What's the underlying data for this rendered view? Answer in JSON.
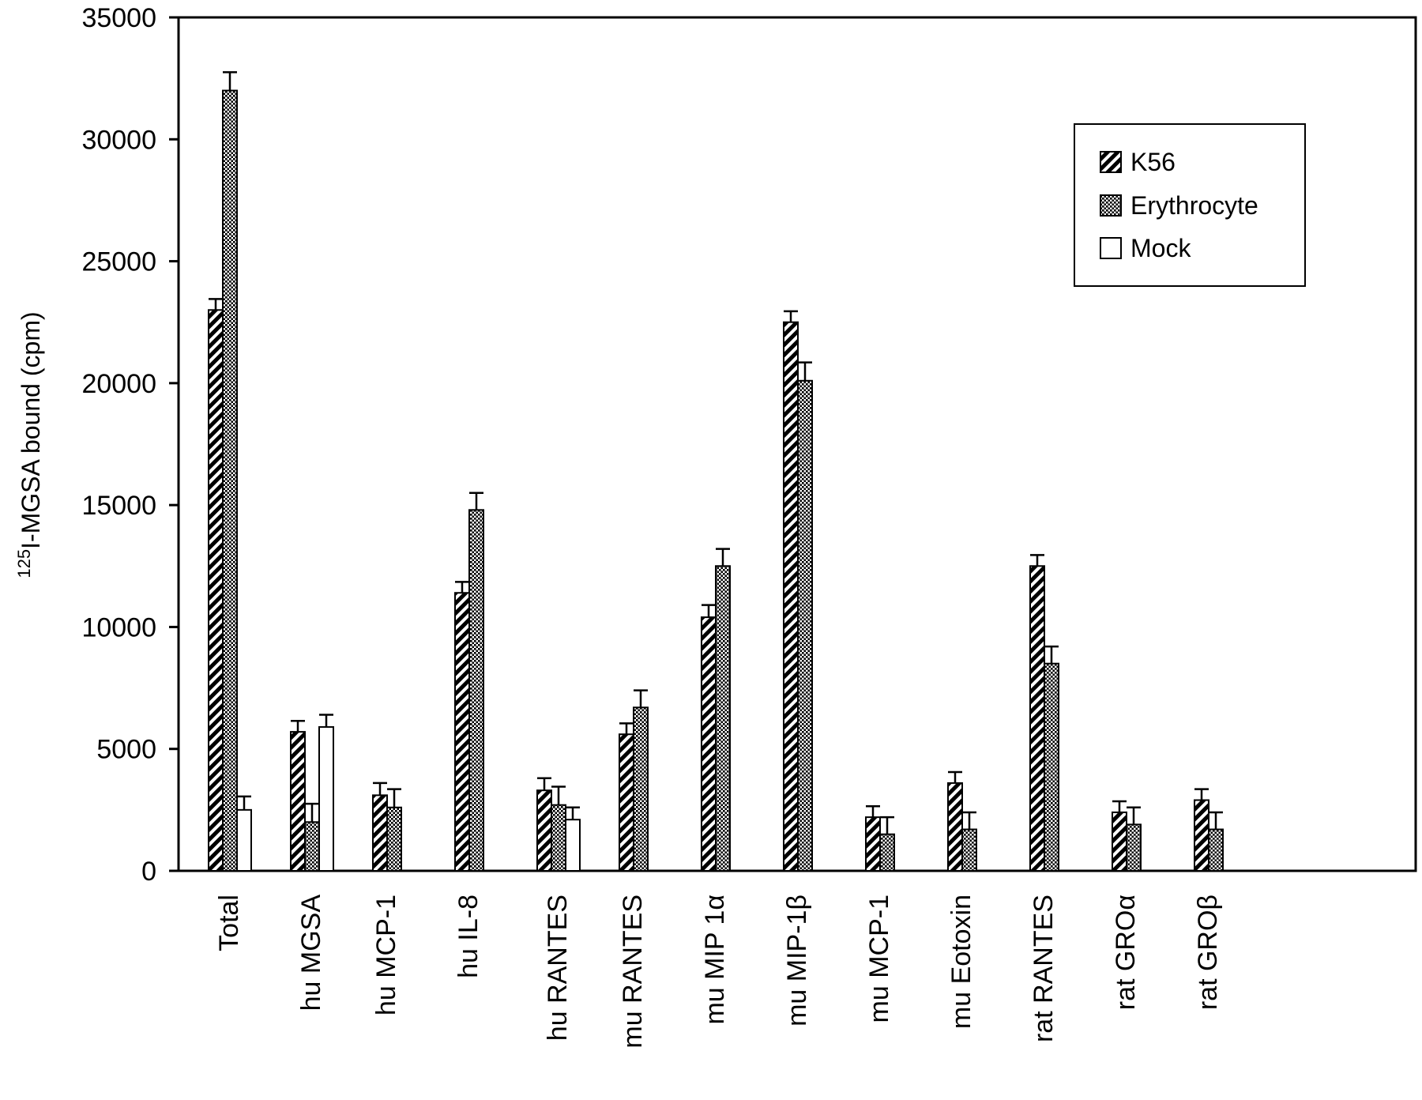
{
  "chart_data": {
    "type": "bar",
    "title": "",
    "xlabel": "",
    "ylabel": {
      "sup": "125",
      "text": "I-MGSA bound (cpm)"
    },
    "ylim": [
      0,
      35000
    ],
    "yticks": [
      0,
      5000,
      10000,
      15000,
      20000,
      25000,
      30000,
      35000
    ],
    "ytick_labels": [
      "0",
      "5000",
      "10000",
      "15000",
      "20000",
      "25000",
      "30000",
      "35000"
    ],
    "grid": false,
    "legend_position": "top-right",
    "categories": [
      "Total",
      "hu MGSA",
      "hu MCP-1",
      "hu IL-8",
      "hu RANTES",
      "mu RANTES",
      "mu MIP 1α",
      "mu MIP-1β",
      "mu MCP-1",
      "mu Eotoxin",
      "rat RANTES",
      "rat GROα",
      "rat GROβ"
    ],
    "series": [
      {
        "name": "K56",
        "pattern": "diagonal",
        "values": [
          23000,
          5700,
          3100,
          11400,
          3300,
          5600,
          10400,
          22500,
          2200,
          3600,
          12500,
          2400,
          2900
        ],
        "errors": [
          450,
          450,
          500,
          450,
          500,
          450,
          500,
          450,
          450,
          450,
          450,
          450,
          450
        ]
      },
      {
        "name": "Erythrocyte",
        "pattern": "dots",
        "values": [
          32000,
          2000,
          2600,
          14800,
          2700,
          6700,
          12500,
          20100,
          1500,
          1700,
          8500,
          1900,
          1700
        ],
        "errors": [
          750,
          750,
          750,
          700,
          750,
          700,
          700,
          750,
          700,
          700,
          700,
          700,
          700
        ]
      },
      {
        "name": "Mock",
        "pattern": "none",
        "values": [
          2500,
          5900,
          null,
          null,
          2100,
          null,
          null,
          null,
          null,
          null,
          null,
          null,
          null
        ],
        "errors": [
          550,
          500,
          null,
          null,
          500,
          null,
          null,
          null,
          null,
          null,
          null,
          null,
          null
        ]
      }
    ]
  }
}
